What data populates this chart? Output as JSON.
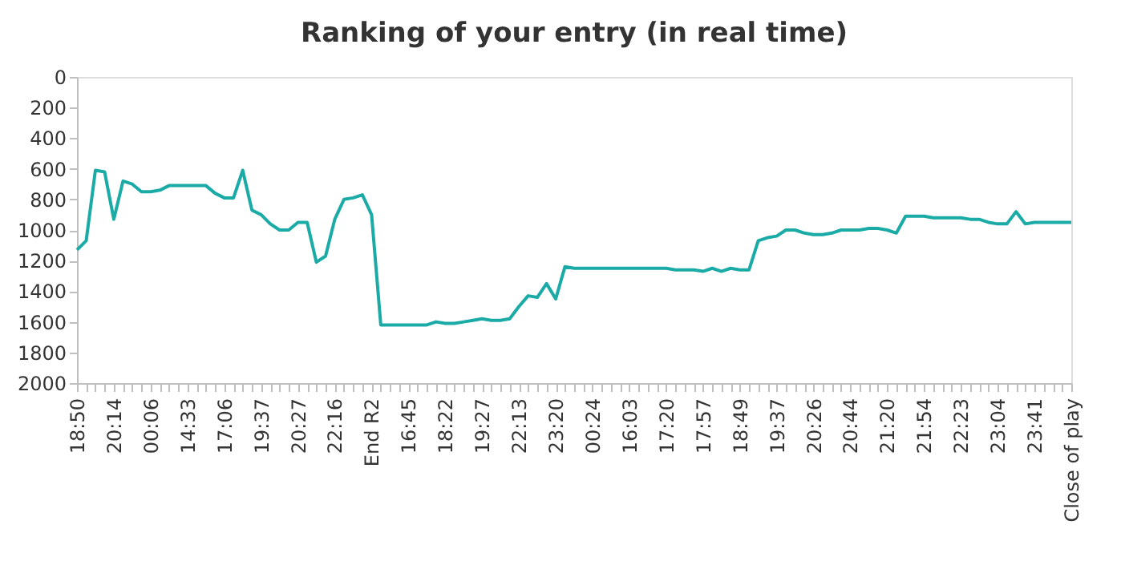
{
  "chart_data": {
    "type": "line",
    "title": "Ranking of your entry (in real time)",
    "categories": [
      "18:50",
      null,
      null,
      null,
      "20:14",
      null,
      null,
      null,
      "00:06",
      null,
      null,
      null,
      "14:33",
      null,
      null,
      null,
      "17:06",
      null,
      null,
      null,
      "19:37",
      null,
      null,
      null,
      "20:27",
      null,
      null,
      null,
      "22:16",
      null,
      null,
      null,
      "End R2",
      null,
      null,
      null,
      "16:45",
      null,
      null,
      null,
      "18:22",
      null,
      null,
      null,
      "19:27",
      null,
      null,
      null,
      "22:13",
      null,
      null,
      null,
      "23:20",
      null,
      null,
      null,
      "00:24",
      null,
      null,
      null,
      "16:03",
      null,
      null,
      null,
      "17:20",
      null,
      null,
      null,
      "17:57",
      null,
      null,
      null,
      "18:49",
      null,
      null,
      null,
      "19:37",
      null,
      null,
      null,
      "20:26",
      null,
      null,
      null,
      "20:44",
      null,
      null,
      null,
      "21:20",
      null,
      null,
      null,
      "21:54",
      null,
      null,
      null,
      "22:23",
      null,
      null,
      null,
      "23:04",
      null,
      null,
      null,
      "23:41",
      null,
      null,
      null,
      "Close of play"
    ],
    "series": [
      {
        "color": "#1aaba6",
        "values": [
          1130,
          1070,
          610,
          620,
          930,
          680,
          700,
          750,
          750,
          740,
          710,
          710,
          710,
          710,
          710,
          760,
          790,
          790,
          610,
          870,
          900,
          960,
          1000,
          1000,
          950,
          950,
          1210,
          1170,
          930,
          800,
          790,
          770,
          900,
          1620,
          1620,
          1620,
          1620,
          1620,
          1620,
          1600,
          1610,
          1610,
          1600,
          1590,
          1580,
          1590,
          1590,
          1580,
          1500,
          1430,
          1440,
          1350,
          1450,
          1240,
          1250,
          1250,
          1250,
          1250,
          1250,
          1250,
          1250,
          1250,
          1250,
          1250,
          1250,
          1260,
          1260,
          1260,
          1270,
          1250,
          1270,
          1250,
          1260,
          1260,
          1070,
          1050,
          1040,
          1000,
          1000,
          1020,
          1030,
          1030,
          1020,
          1000,
          1000,
          1000,
          990,
          990,
          1000,
          1020,
          910,
          910,
          910,
          920,
          920,
          920,
          920,
          930,
          930,
          950,
          960,
          960,
          880,
          960,
          950,
          950,
          950,
          950,
          950
        ]
      }
    ],
    "ylim": [
      2000,
      0
    ],
    "yticks": [
      0,
      200,
      400,
      600,
      800,
      1000,
      1200,
      1400,
      1600,
      1800,
      2000
    ],
    "grid": false,
    "marker": "none",
    "line_style": "solid"
  }
}
